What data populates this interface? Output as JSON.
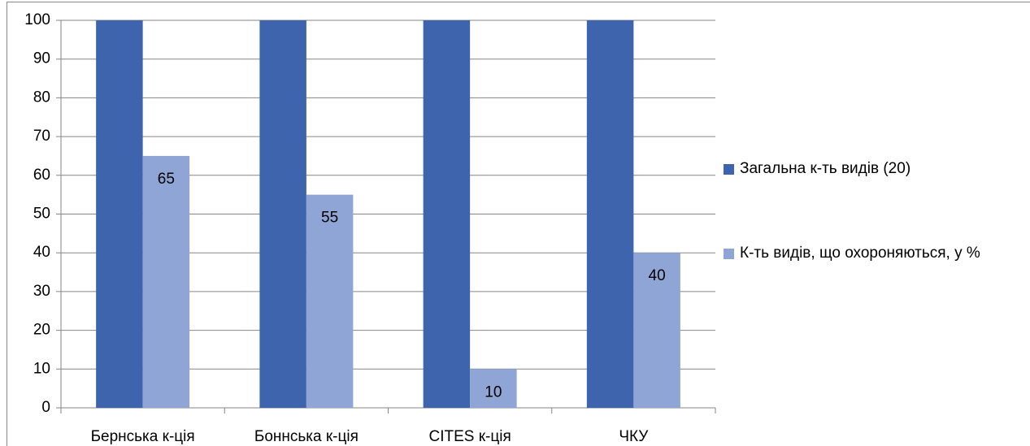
{
  "chart_data": {
    "type": "bar",
    "categories": [
      "Бернська к-ція",
      "Боннська к-ція",
      "CITES к-ція",
      "ЧКУ"
    ],
    "series": [
      {
        "name": "Загальна к-ть видів (20)",
        "color": "#3e64ae",
        "values": [
          100,
          100,
          100,
          100
        ],
        "data_labels": false
      },
      {
        "name": "К-ть видів, що охороняються, у %",
        "color": "#8fa5d6",
        "values": [
          65,
          55,
          10,
          40
        ],
        "data_labels": true
      }
    ],
    "ylim": [
      0,
      100
    ],
    "yticks": [
      0,
      10,
      20,
      30,
      40,
      50,
      60,
      70,
      80,
      90,
      100
    ],
    "grid": true,
    "legend": "right"
  }
}
